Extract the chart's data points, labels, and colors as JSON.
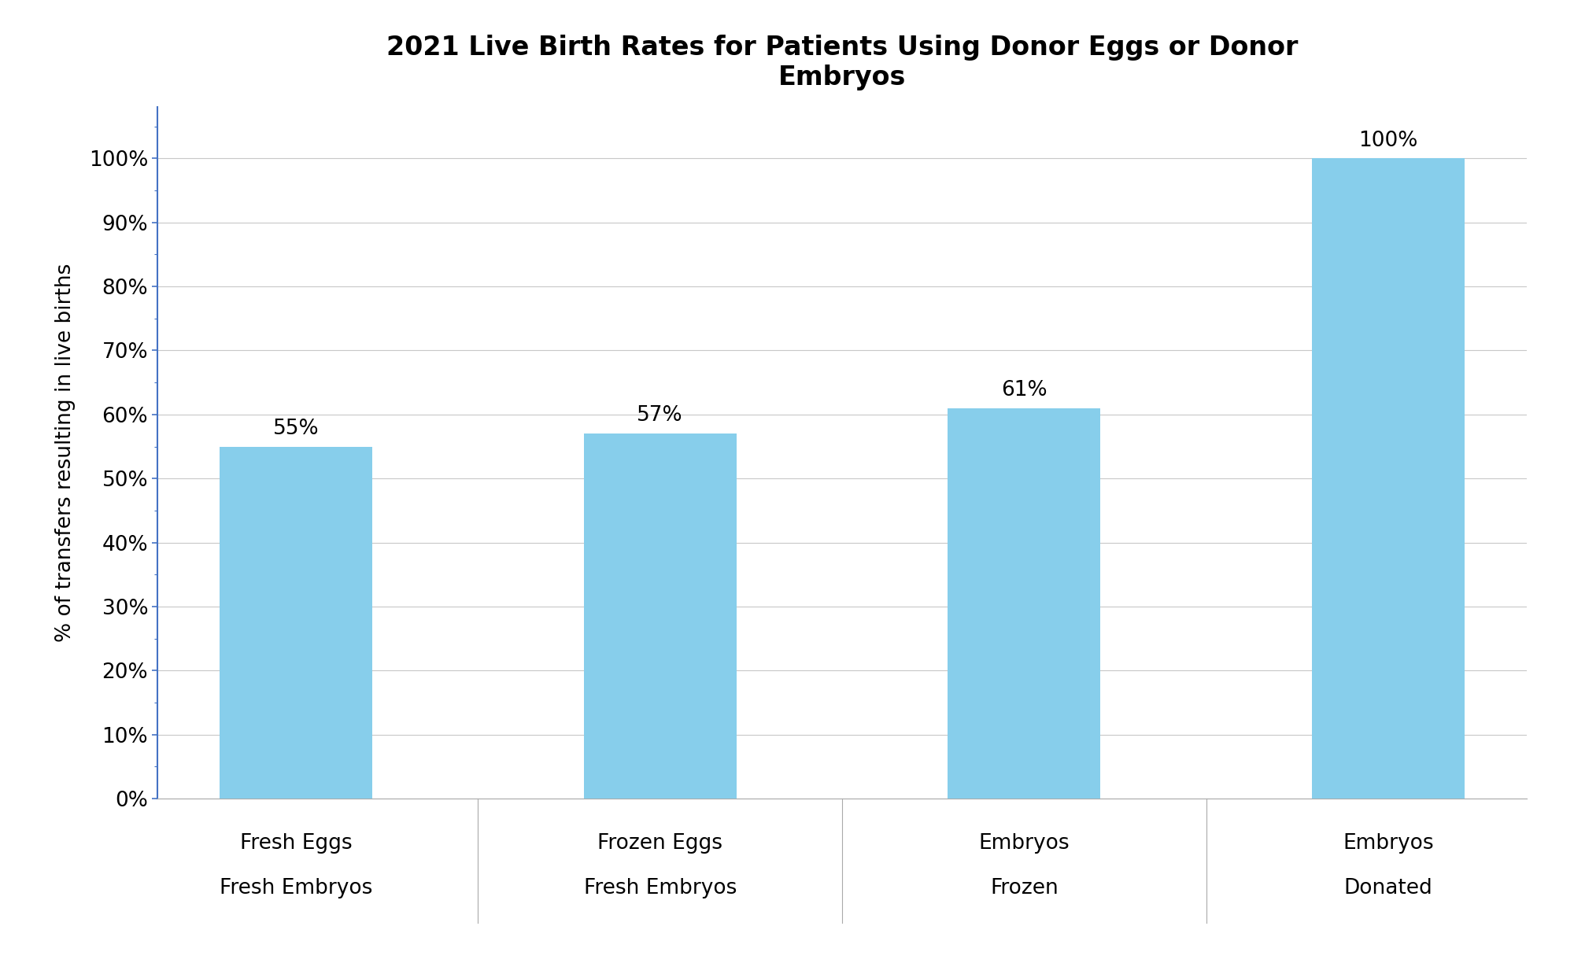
{
  "title": "2021 Live Birth Rates for Patients Using Donor Eggs or Donor\nEmbryos",
  "ylabel": "% of transfers resulting in live births",
  "categories_line1": [
    "Fresh Eggs",
    "Frozen Eggs",
    "Embryos",
    "Embryos"
  ],
  "categories_line2": [
    "Fresh Embryos",
    "Fresh Embryos",
    "Frozen",
    "Donated"
  ],
  "values": [
    0.55,
    0.57,
    0.61,
    1.0
  ],
  "labels": [
    "55%",
    "57%",
    "61%",
    "100%"
  ],
  "bar_color": "#87CEEB",
  "background_color": "#ffffff",
  "title_fontsize": 24,
  "label_fontsize": 19,
  "tick_fontsize": 19,
  "ylabel_fontsize": 19,
  "ylim": [
    0,
    1.08
  ],
  "yticks": [
    0.0,
    0.1,
    0.2,
    0.3,
    0.4,
    0.5,
    0.6,
    0.7,
    0.8,
    0.9,
    1.0
  ],
  "ytick_labels": [
    "0%",
    "10%",
    "20%",
    "30%",
    "40%",
    "50%",
    "60%",
    "70%",
    "80%",
    "90%",
    "100%"
  ],
  "bar_width": 0.42,
  "grid_color": "#c8c8c8",
  "grid_linewidth": 0.8,
  "spine_color": "#4472C4",
  "tick_color": "#4472C4"
}
